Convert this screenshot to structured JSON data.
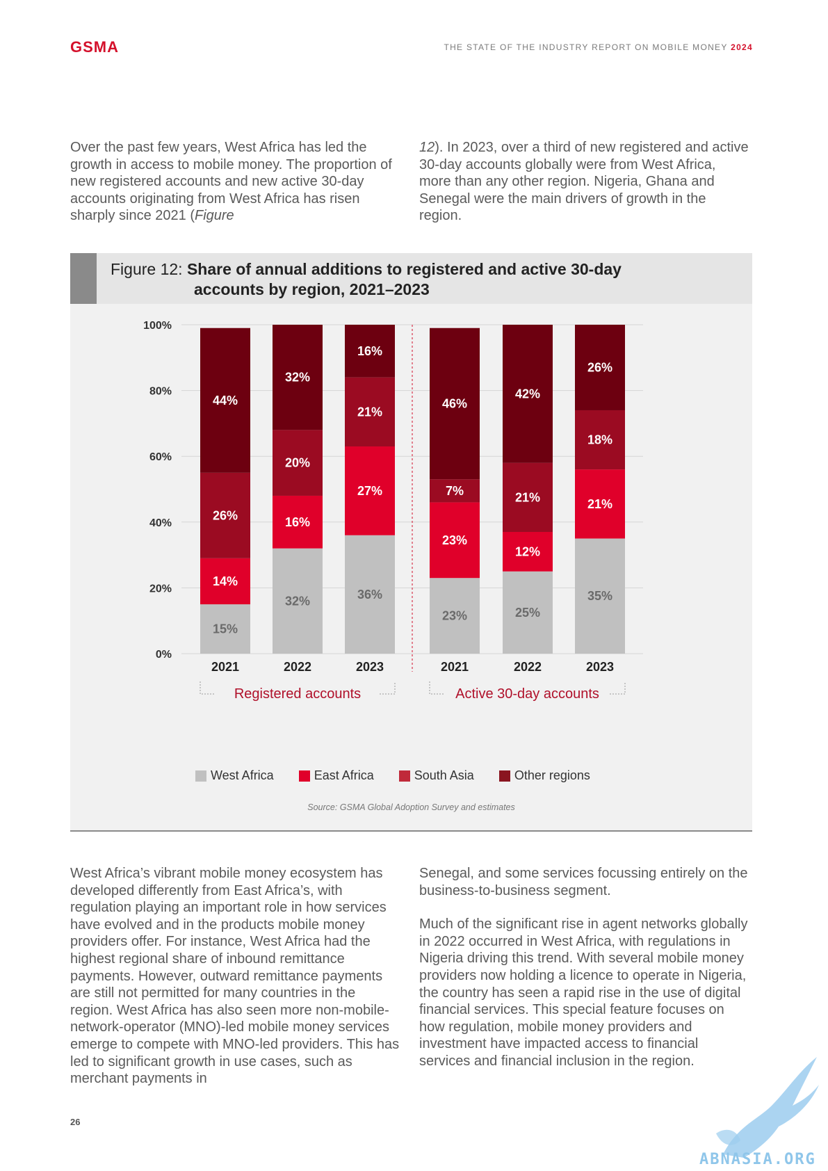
{
  "header": {
    "logo": "GSMA",
    "report_title": "THE STATE OF THE INDUSTRY REPORT ON MOBILE MONEY",
    "report_year": "2024"
  },
  "intro": {
    "left_a": "Over the past few years, West Africa has led the growth in access to mobile money. The proportion of new registered accounts and new active 30-day accounts originating from West Africa has risen sharply since 2021 (",
    "left_italic": "Figure",
    "right_italic": "12",
    "right_b": "). In 2023, over a third of new registered and active 30-day accounts globally were from West Africa, more than any other region. Nigeria, Ghana and Senegal were the main drivers of growth in the region."
  },
  "figure": {
    "label": "Figure 12:",
    "title_line1": "Share of annual additions to registered and active 30-day",
    "title_line2": "accounts by region, 2021–2023",
    "source": "Source: GSMA Global Adoption Survey and estimates"
  },
  "chart_data": {
    "type": "bar",
    "stacked": true,
    "y_ticks": [
      "100%",
      "80%",
      "60%",
      "40%",
      "20%",
      "0%"
    ],
    "ylim": [
      0,
      100
    ],
    "groups": [
      {
        "name": "Registered accounts",
        "categories": [
          "2021",
          "2022",
          "2023"
        ]
      },
      {
        "name": "Active 30-day accounts",
        "categories": [
          "2021",
          "2022",
          "2023"
        ]
      }
    ],
    "categories": [
      "2021",
      "2022",
      "2023",
      "2021",
      "2022",
      "2023"
    ],
    "series": [
      {
        "name": "West Africa",
        "color": "#c0c0c0",
        "values": [
          15,
          32,
          36,
          23,
          25,
          35
        ],
        "labels": [
          "15%",
          "32%",
          "36%",
          "23%",
          "25%",
          "35%"
        ]
      },
      {
        "name": "East Africa",
        "color": "#e0002a",
        "values": [
          14,
          16,
          27,
          23,
          12,
          21
        ],
        "labels": [
          "14%",
          "16%",
          "27%",
          "23%",
          "12%",
          "21%"
        ]
      },
      {
        "name": "South Asia",
        "color": "#9b0b22",
        "values": [
          26,
          20,
          21,
          7,
          21,
          18
        ],
        "labels": [
          "26%",
          "20%",
          "21%",
          "7%",
          "21%",
          "18%"
        ]
      },
      {
        "name": "Other regions",
        "color": "#6d0010",
        "values": [
          44,
          32,
          16,
          46,
          42,
          26
        ],
        "labels": [
          "44%",
          "32%",
          "16%",
          "46%",
          "42%",
          "26%"
        ]
      }
    ],
    "legend": "bottom",
    "legend_swatches": [
      "#c0c0c0",
      "#e0002a",
      "#c02a3a",
      "#8a1520"
    ]
  },
  "body": {
    "left": "West Africa’s vibrant mobile money ecosystem has developed differently from East Africa’s, with regulation playing an important role in how services have evolved and in the products mobile money providers offer. For instance, West Africa had the highest regional share of inbound remittance payments. However, outward remittance payments are still not permitted for many countries in the region. West Africa has also seen more non-mobile-network-operator (MNO)-led mobile money services emerge to compete with MNO-led providers. This has led to significant growth in use cases, such as merchant payments in",
    "right_p1": "Senegal, and some services focussing entirely on the business-to-business segment.",
    "right_p2": "Much of the significant rise in agent networks globally in 2022 occurred in West Africa, with regulations in Nigeria driving this trend. With several mobile money providers now holding a licence to operate in Nigeria, the country has seen a rapid rise in the use of digital financial services. This special feature focuses on how regulation, mobile money providers and investment have impacted access to financial services and financial inclusion in the region."
  },
  "footer": {
    "page_number": "26"
  },
  "watermark": {
    "text": "ABNASIA.ORG"
  }
}
